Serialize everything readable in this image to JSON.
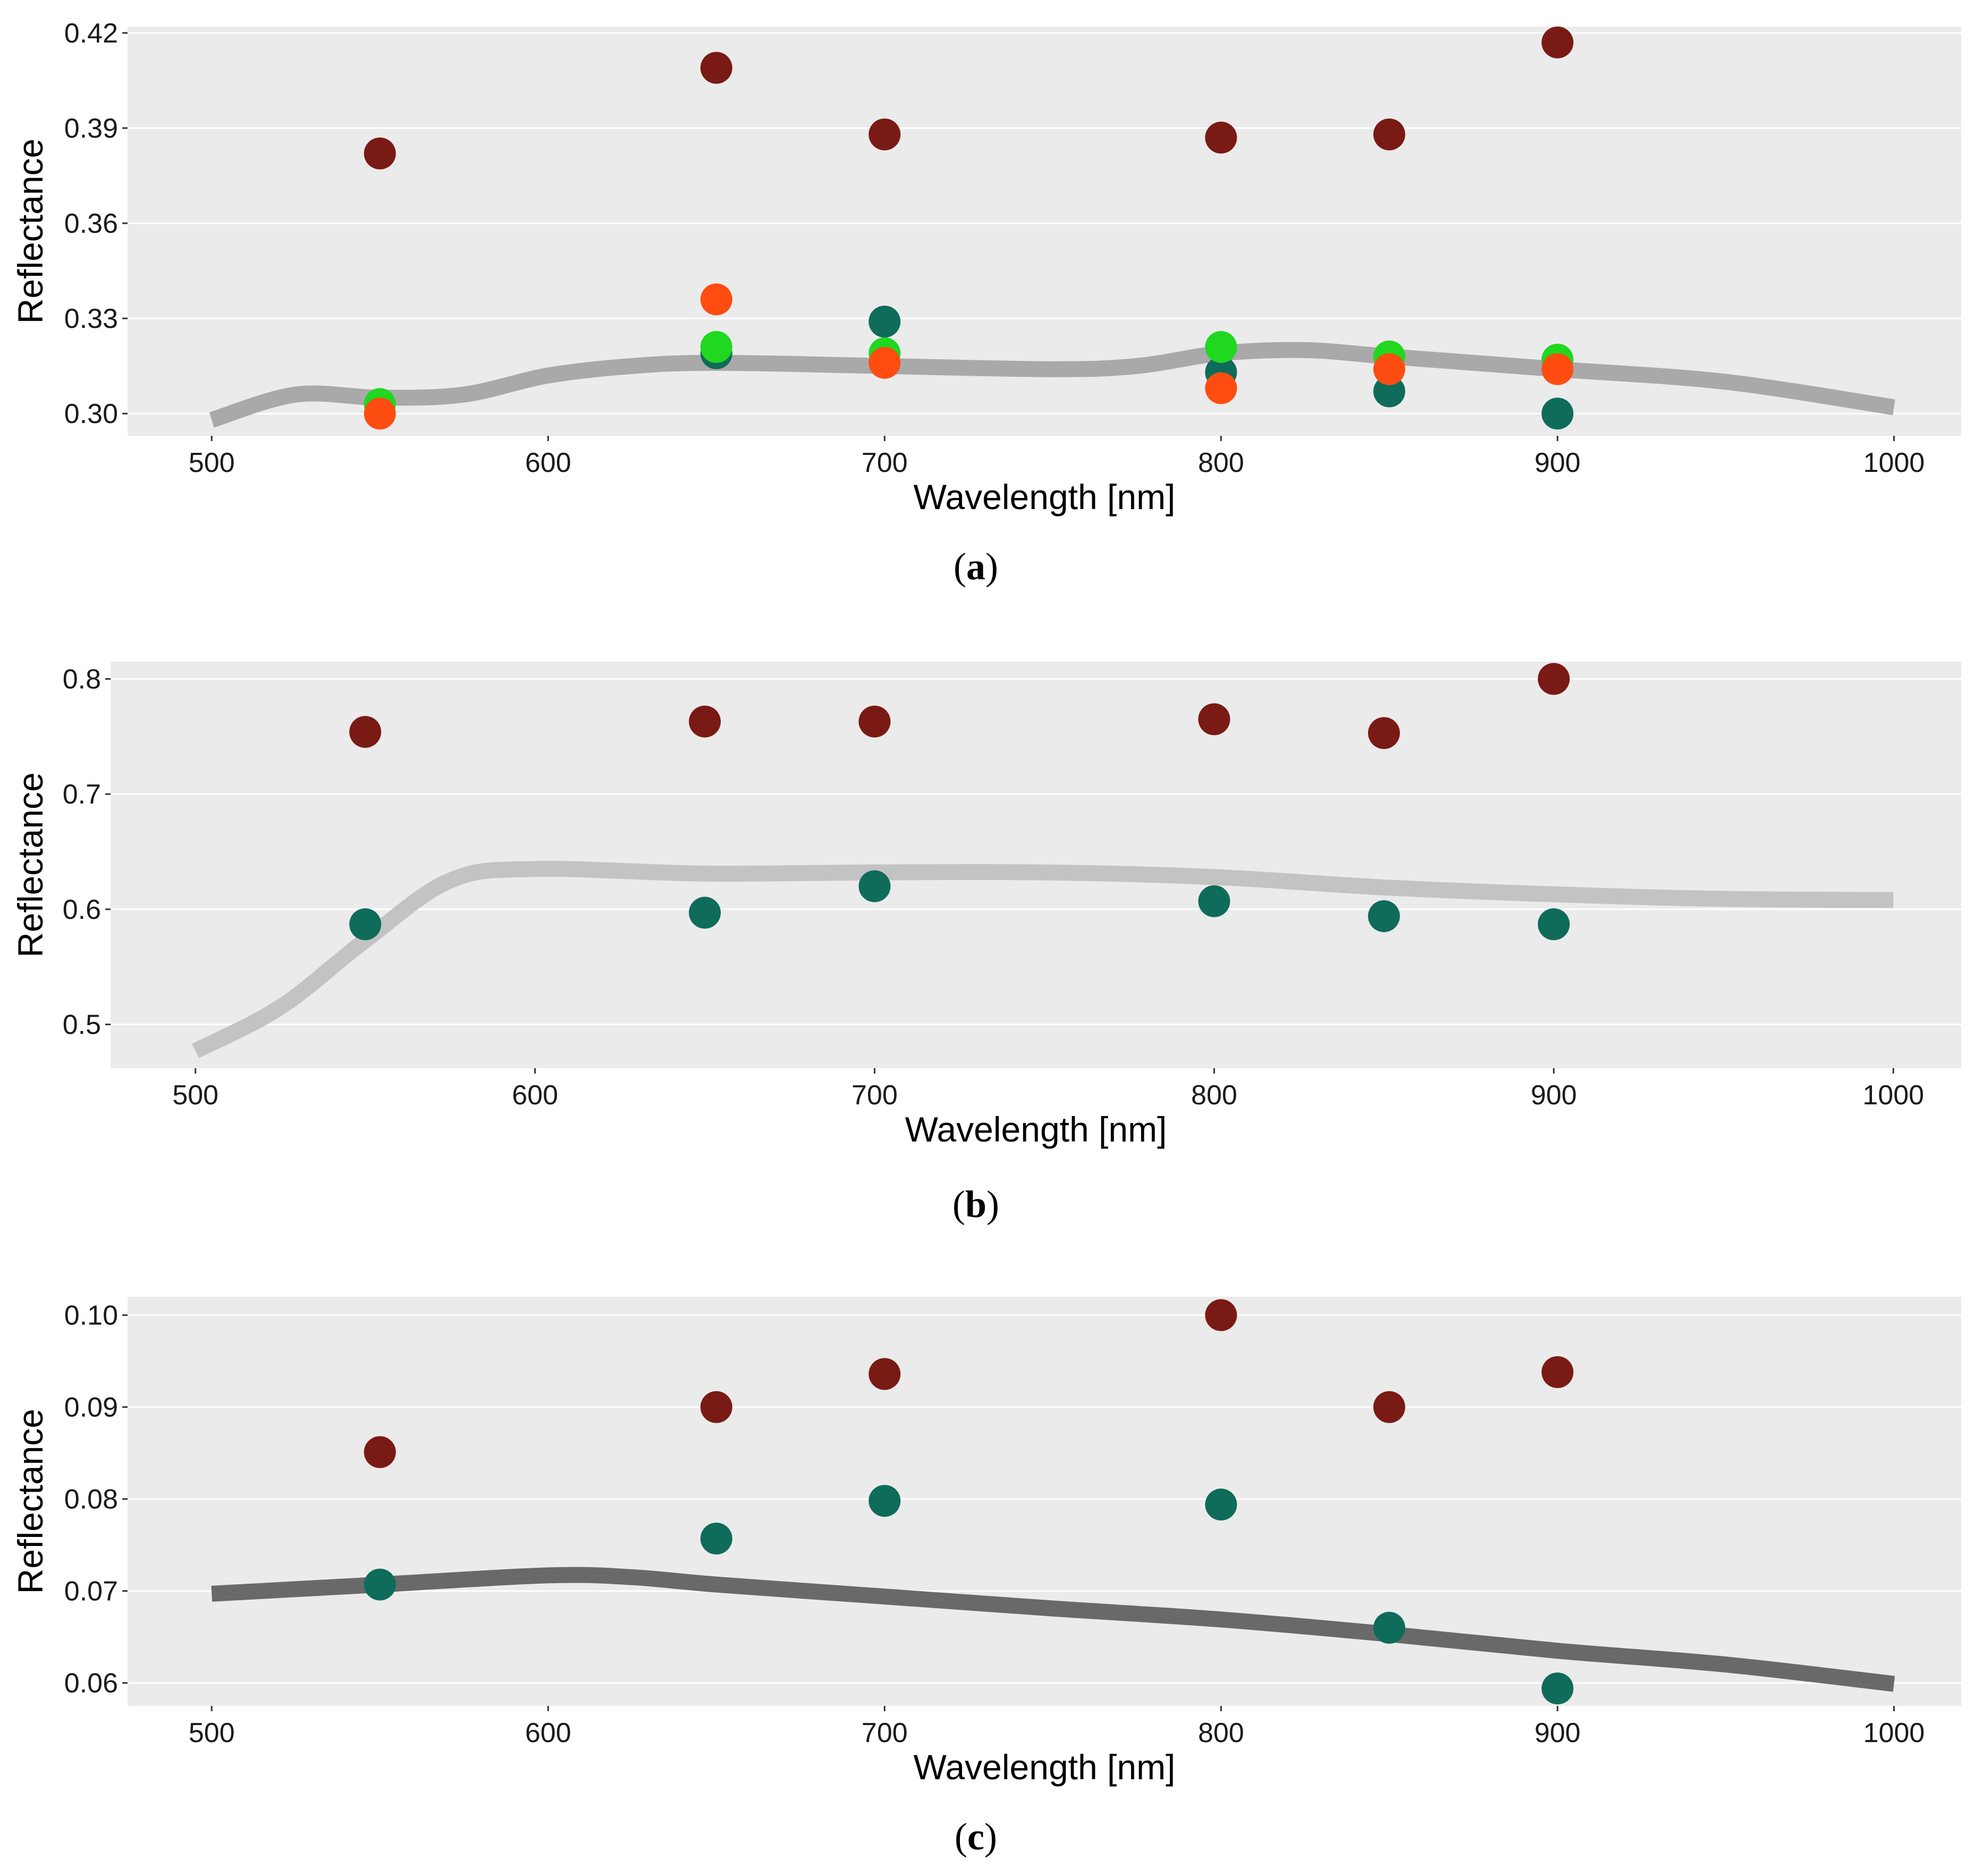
{
  "chart_data": [
    {
      "type": "scatter",
      "caption": "a",
      "xlabel": "Wavelength [nm]",
      "ylabel": "Reflectance",
      "xlim": [
        475,
        1020
      ],
      "ylim": [
        0.293,
        0.422
      ],
      "x_ticks": [
        500,
        600,
        700,
        800,
        900,
        1000
      ],
      "x_tick_labels": [
        "500",
        "600",
        "700",
        "800",
        "900",
        "1000"
      ],
      "y_ticks": [
        0.3,
        0.33,
        0.36,
        0.39,
        0.42
      ],
      "y_tick_labels": [
        "0.30",
        "0.33",
        "0.36",
        "0.39",
        "0.42"
      ],
      "grid": true,
      "reference_curve": {
        "color": "#a9a9a9",
        "x": [
          500,
          525,
          550,
          575,
          600,
          625,
          650,
          700,
          750,
          775,
          800,
          825,
          850,
          900,
          950,
          1000
        ],
        "y": [
          0.298,
          0.306,
          0.305,
          0.306,
          0.312,
          0.315,
          0.316,
          0.315,
          0.314,
          0.315,
          0.319,
          0.32,
          0.318,
          0.314,
          0.31,
          0.302
        ]
      },
      "series": [
        {
          "color": "#7a1a14",
          "x": [
            550,
            650,
            700,
            800,
            850,
            900
          ],
          "y": [
            0.382,
            0.409,
            0.388,
            0.387,
            0.388,
            0.417
          ]
        },
        {
          "color": "#0f6b5a",
          "x": [
            650,
            700,
            800,
            850,
            900
          ],
          "y": [
            0.319,
            0.329,
            0.313,
            0.307,
            0.3
          ]
        },
        {
          "color": "#1fd81f",
          "x": [
            550,
            650,
            700,
            800,
            850,
            900
          ],
          "y": [
            0.303,
            0.321,
            0.319,
            0.321,
            0.318,
            0.317
          ]
        },
        {
          "color": "#ff4d12",
          "x": [
            550,
            650,
            700,
            800,
            850,
            900
          ],
          "y": [
            0.3,
            0.336,
            0.316,
            0.308,
            0.314,
            0.314
          ]
        }
      ]
    },
    {
      "type": "scatter",
      "caption": "b",
      "xlabel": "Wavelength [nm]",
      "ylabel": "Reflectance",
      "xlim": [
        475,
        1020
      ],
      "ylim": [
        0.462,
        0.815
      ],
      "x_ticks": [
        500,
        600,
        700,
        800,
        900,
        1000
      ],
      "x_tick_labels": [
        "500",
        "600",
        "700",
        "800",
        "900",
        "1000"
      ],
      "y_ticks": [
        0.5,
        0.6,
        0.7,
        0.8
      ],
      "y_tick_labels": [
        "0.5",
        "0.6",
        "0.7",
        "0.8"
      ],
      "grid": true,
      "reference_curve": {
        "color": "#c3c3c3",
        "x": [
          500,
          525,
          550,
          575,
          600,
          650,
          700,
          750,
          800,
          850,
          900,
          950,
          1000
        ],
        "y": [
          0.477,
          0.515,
          0.573,
          0.625,
          0.635,
          0.631,
          0.632,
          0.632,
          0.628,
          0.619,
          0.613,
          0.609,
          0.608
        ]
      },
      "series": [
        {
          "color": "#7a1a14",
          "x": [
            550,
            650,
            700,
            800,
            850,
            900
          ],
          "y": [
            0.754,
            0.763,
            0.763,
            0.765,
            0.753,
            0.8
          ]
        },
        {
          "color": "#0f6b5a",
          "x": [
            550,
            650,
            700,
            800,
            850,
            900
          ],
          "y": [
            0.587,
            0.597,
            0.62,
            0.607,
            0.594,
            0.587
          ]
        }
      ]
    },
    {
      "type": "scatter",
      "caption": "c",
      "xlabel": "Wavelength [nm]",
      "ylabel": "Reflectance",
      "xlim": [
        475,
        1020
      ],
      "ylim": [
        0.0575,
        0.102
      ],
      "x_ticks": [
        500,
        600,
        700,
        800,
        900,
        1000
      ],
      "x_tick_labels": [
        "500",
        "600",
        "700",
        "800",
        "900",
        "1000"
      ],
      "y_ticks": [
        0.06,
        0.07,
        0.08,
        0.09,
        0.1
      ],
      "y_tick_labels": [
        "0.06",
        "0.07",
        "0.08",
        "0.09",
        "0.10"
      ],
      "grid": true,
      "reference_curve": {
        "color": "#696969",
        "x": [
          500,
          550,
          600,
          625,
          650,
          700,
          750,
          800,
          850,
          900,
          950,
          1000
        ],
        "y": [
          0.0697,
          0.0707,
          0.0717,
          0.0715,
          0.0707,
          0.0694,
          0.0681,
          0.0669,
          0.0653,
          0.0635,
          0.062,
          0.0599
        ]
      },
      "series": [
        {
          "color": "#7a1a14",
          "x": [
            550,
            650,
            700,
            800,
            850,
            900
          ],
          "y": [
            0.0851,
            0.09,
            0.0936,
            0.1,
            0.09,
            0.0938
          ]
        },
        {
          "color": "#0f6b5a",
          "x": [
            550,
            650,
            700,
            800,
            850,
            900
          ],
          "y": [
            0.0707,
            0.0757,
            0.0798,
            0.0794,
            0.066,
            0.0594
          ]
        }
      ]
    }
  ]
}
